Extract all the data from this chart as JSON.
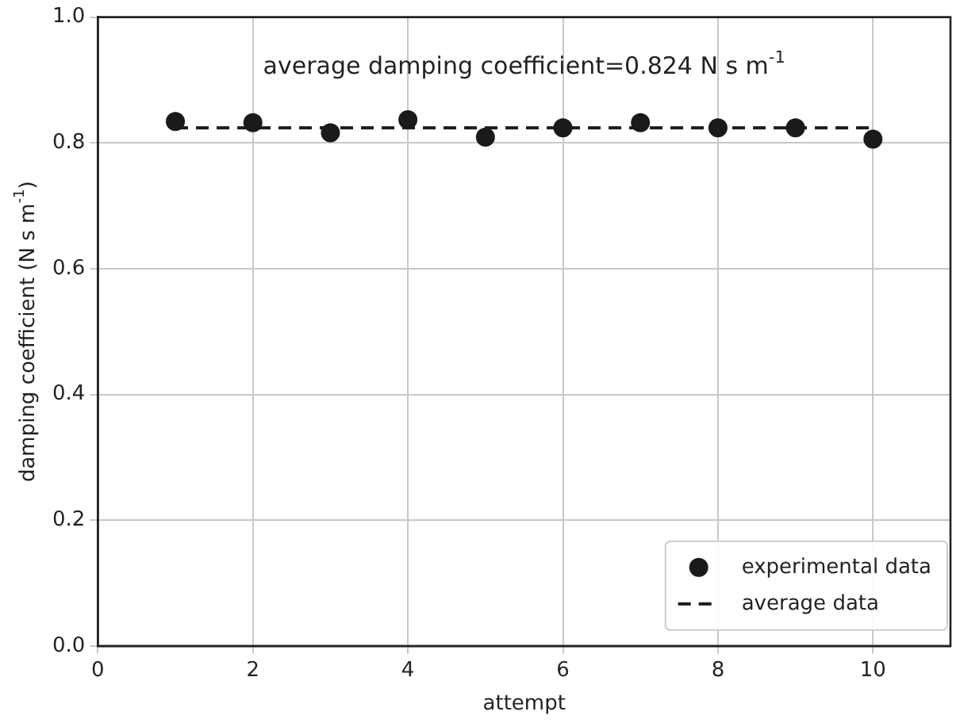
{
  "chart_data": {
    "type": "scatter",
    "xlabel": "attempt",
    "ylabel": "damping coefficient (N s m$^{-1}$)",
    "annotations": [
      "average damping coefficient=0.824 N s m$^{-1}$"
    ],
    "series": [
      {
        "name": "experimental data",
        "type": "scatter",
        "color": "#1a1a1a",
        "marker": "circle",
        "x": [
          1,
          2,
          3,
          4,
          5,
          6,
          7,
          8,
          9,
          10
        ],
        "values": [
          0.834,
          0.832,
          0.816,
          0.837,
          0.809,
          0.824,
          0.832,
          0.824,
          0.824,
          0.806
        ]
      },
      {
        "name": "average data",
        "type": "line",
        "color": "#1a1a1a",
        "marker": "none",
        "line_style": "dashed",
        "x": [
          1,
          10
        ],
        "values": [
          0.824,
          0.824
        ]
      }
    ],
    "xlim": [
      0,
      11
    ],
    "xticks": [
      0,
      2,
      4,
      6,
      8,
      10
    ],
    "ylim": [
      0,
      1
    ],
    "yticks": [
      {
        "value": 0,
        "label": "0.0"
      },
      0.2,
      0.4,
      0.6,
      0.8,
      {
        "value": 1,
        "label": "1.0"
      }
    ],
    "grid": true,
    "legend": "bottom right"
  }
}
